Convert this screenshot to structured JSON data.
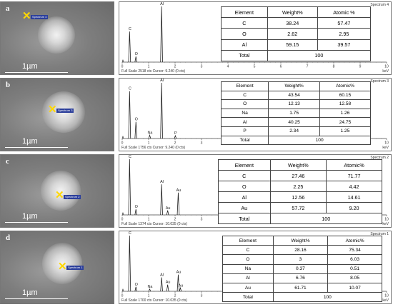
{
  "panels": [
    {
      "label": "a",
      "scale_bar": "1µm",
      "spot_label": "Spectrum 4",
      "spectrum_name": "Spectrum 4",
      "footer": "Full Scale 2518 cts Cursor: 9.240  (0 cts)",
      "unit": "keV",
      "x_ticks": [
        "0",
        "1",
        "2",
        "3",
        "4",
        "5",
        "6",
        "7",
        "8",
        "9",
        "10"
      ],
      "peaks": [
        {
          "symbol": "C",
          "energy": 0.28,
          "height": 0.55
        },
        {
          "symbol": "O",
          "energy": 0.52,
          "height": 0.1
        },
        {
          "symbol": "Al",
          "energy": 1.49,
          "height": 1.0
        }
      ],
      "table": {
        "headers": [
          "Element",
          "Weight%",
          "Atomic %"
        ],
        "rows": [
          [
            "C",
            "38.24",
            "57.47"
          ],
          [
            "O",
            "2.62",
            "2.95"
          ],
          [
            "Al",
            "59.15",
            "39.57"
          ]
        ],
        "total_label": "Total",
        "total_value": "100"
      }
    },
    {
      "label": "b",
      "scale_bar": "1µm",
      "spot_label": "Spectrum 3",
      "spectrum_name": "Spectrum 3",
      "footer": "Full Scale 1756 cts Cursor: 9.240  (0 cts)",
      "unit": "keV",
      "x_ticks": [
        "0",
        "1",
        "2",
        "3",
        "4",
        "5",
        "6",
        "7",
        "8",
        "9",
        "10"
      ],
      "peaks": [
        {
          "symbol": "C",
          "energy": 0.28,
          "height": 0.85
        },
        {
          "symbol": "O",
          "energy": 0.52,
          "height": 0.3
        },
        {
          "symbol": "Na",
          "energy": 1.04,
          "height": 0.06
        },
        {
          "symbol": "Al",
          "energy": 1.49,
          "height": 1.0
        },
        {
          "symbol": "P",
          "energy": 2.01,
          "height": 0.05
        }
      ],
      "table": {
        "headers": [
          "Element",
          "Weight%",
          "Atomic%"
        ],
        "rows": [
          [
            "C",
            "43.54",
            "60.15"
          ],
          [
            "O",
            "12.13",
            "12.58"
          ],
          [
            "Na",
            "1.75",
            "1.26"
          ],
          [
            "Al",
            "40.25",
            "24.75"
          ],
          [
            "P",
            "2.34",
            "1.25"
          ]
        ],
        "total_label": "Total",
        "total_value": "100"
      }
    },
    {
      "label": "c",
      "scale_bar": "1µm",
      "spot_label": "Spectrum 2",
      "spectrum_name": "Spectrum 2",
      "footer": "Full Scale 1374 cts Cursor: 10.035  (0 cts)",
      "unit": "keV",
      "x_ticks": [
        "0",
        "1",
        "2",
        "3",
        "4",
        "5",
        "6",
        "7",
        "8",
        "9",
        "10"
      ],
      "peaks": [
        {
          "symbol": "C",
          "energy": 0.28,
          "height": 1.0
        },
        {
          "symbol": "O",
          "energy": 0.52,
          "height": 0.1
        },
        {
          "symbol": "Al",
          "energy": 1.49,
          "height": 0.55
        },
        {
          "symbol": "Au",
          "energy": 1.72,
          "height": 0.08
        },
        {
          "symbol": "Au",
          "energy": 2.12,
          "height": 0.4
        }
      ],
      "table": {
        "headers": [
          "Element",
          "Weight%",
          "Atomic%"
        ],
        "rows": [
          [
            "C",
            "27.46",
            "71.77"
          ],
          [
            "O",
            "2.25",
            "4.42"
          ],
          [
            "Al",
            "12.56",
            "14.61"
          ],
          [
            "Au",
            "57.72",
            "9.20"
          ]
        ],
        "total_label": "Total",
        "total_value": "100"
      }
    },
    {
      "label": "d",
      "scale_bar": "1µm",
      "spot_label": "Spectrum 1",
      "spectrum_name": "Spectrum 1",
      "footer": "Full Scale 1700 cts Cursor: 10.035  (0 cts)",
      "unit": "keV",
      "x_ticks": [
        "0",
        "1",
        "2",
        "3",
        "4",
        "5",
        "6",
        "7",
        "8",
        "9",
        "10"
      ],
      "peaks": [
        {
          "symbol": "C",
          "energy": 0.28,
          "height": 1.0
        },
        {
          "symbol": "O",
          "energy": 0.52,
          "height": 0.08
        },
        {
          "symbol": "Na",
          "energy": 1.04,
          "height": 0.04
        },
        {
          "symbol": "Al",
          "energy": 1.49,
          "height": 0.25
        },
        {
          "symbol": "Au",
          "energy": 1.72,
          "height": 0.12
        },
        {
          "symbol": "Au",
          "energy": 2.12,
          "height": 0.3
        },
        {
          "symbol": "Au",
          "energy": 2.2,
          "height": 0.06
        }
      ],
      "table": {
        "headers": [
          "Element",
          "Weight%",
          "Atomic%"
        ],
        "rows": [
          [
            "C",
            "28.16",
            "75.34"
          ],
          [
            "O",
            "3",
            "6.03"
          ],
          [
            "Na",
            "0.37",
            "0.51"
          ],
          [
            "Al",
            "6.76",
            "8.05"
          ],
          [
            "Au",
            "61.71",
            "10.07"
          ]
        ],
        "total_label": "Total",
        "total_value": "100"
      }
    }
  ]
}
